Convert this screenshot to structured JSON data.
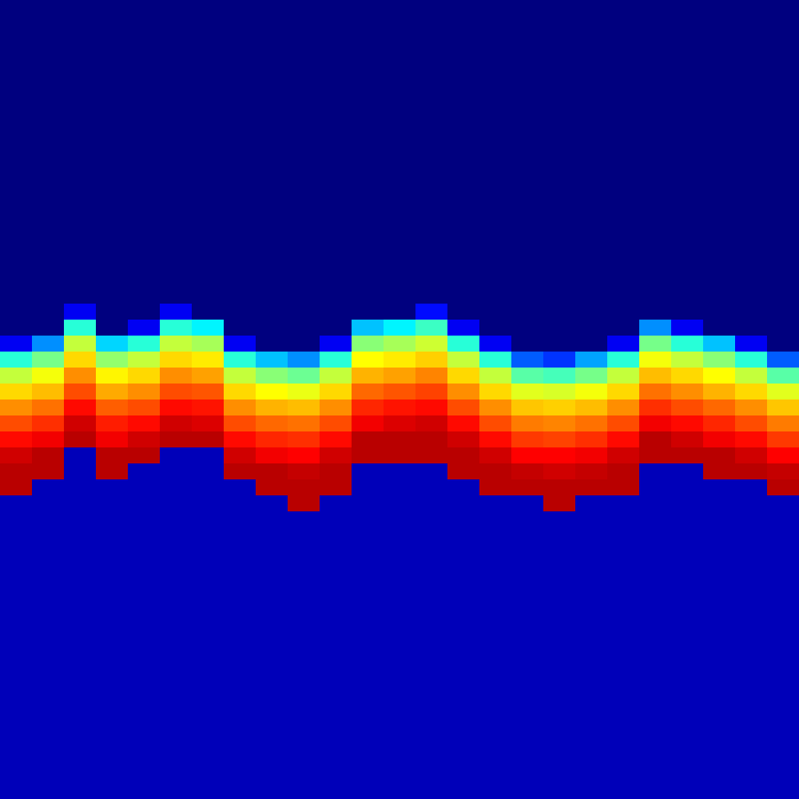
{
  "chart_data": {
    "type": "heatmap",
    "tick_labels": false,
    "zlim": [
      0,
      1
    ],
    "x_edges": [
      0,
      40,
      80,
      120,
      160,
      200,
      240,
      280,
      320,
      360,
      400,
      440,
      480,
      520,
      560,
      600,
      640,
      680,
      720,
      760,
      800,
      840,
      880,
      920,
      960,
      1000
    ],
    "y_edges": [
      0,
      380,
      400,
      420,
      440,
      460,
      480,
      500,
      520,
      540,
      560,
      580,
      600,
      620,
      640,
      660,
      1000
    ],
    "columns": [
      [
        0,
        0,
        0,
        0.1,
        0.4,
        0.56,
        0.66,
        0.74,
        0.81,
        0.88,
        0.93,
        0.95,
        0.95,
        0.05,
        0.05,
        0.05
      ],
      [
        0,
        0,
        0,
        0.25,
        0.48,
        0.61,
        0.69,
        0.77,
        0.84,
        0.9,
        0.95,
        0.95,
        0.05,
        0.05,
        0.05,
        0.05
      ],
      [
        0,
        0.1,
        0.4,
        0.56,
        0.66,
        0.74,
        0.81,
        0.88,
        0.93,
        0.95,
        0.05,
        0.05,
        0.05,
        0.05,
        0.05,
        0.05
      ],
      [
        0,
        0,
        0,
        0.32,
        0.51,
        0.63,
        0.71,
        0.79,
        0.86,
        0.9,
        0.95,
        0.95,
        0.05,
        0.05,
        0.05,
        0.05
      ],
      [
        0,
        0,
        0.1,
        0.4,
        0.56,
        0.66,
        0.74,
        0.81,
        0.88,
        0.93,
        0.95,
        0.05,
        0.05,
        0.05,
        0.05,
        0.05
      ],
      [
        0,
        0.1,
        0.4,
        0.56,
        0.66,
        0.74,
        0.81,
        0.88,
        0.93,
        0.95,
        0.05,
        0.05,
        0.05,
        0.05,
        0.05,
        0.05
      ],
      [
        0,
        0,
        0.35,
        0.53,
        0.64,
        0.72,
        0.8,
        0.87,
        0.92,
        0.95,
        0.05,
        0.05,
        0.05,
        0.05,
        0.05,
        0.05
      ],
      [
        0,
        0,
        0,
        0.1,
        0.4,
        0.56,
        0.66,
        0.74,
        0.81,
        0.88,
        0.93,
        0.95,
        0.05,
        0.05,
        0.05,
        0.05
      ],
      [
        0,
        0,
        0,
        0,
        0.3,
        0.5,
        0.62,
        0.7,
        0.78,
        0.85,
        0.9,
        0.95,
        0.95,
        0.05,
        0.05,
        0.05
      ],
      [
        0,
        0,
        0,
        0,
        0.25,
        0.47,
        0.6,
        0.69,
        0.77,
        0.84,
        0.89,
        0.94,
        0.95,
        0.95,
        0.05,
        0.05
      ],
      [
        0,
        0,
        0,
        0.1,
        0.4,
        0.56,
        0.66,
        0.74,
        0.81,
        0.88,
        0.93,
        0.95,
        0.95,
        0.05,
        0.05,
        0.05
      ],
      [
        0,
        0,
        0.3,
        0.5,
        0.62,
        0.7,
        0.78,
        0.85,
        0.9,
        0.95,
        0.95,
        0.05,
        0.05,
        0.05,
        0.05,
        0.05
      ],
      [
        0,
        0,
        0.35,
        0.53,
        0.64,
        0.72,
        0.8,
        0.87,
        0.92,
        0.95,
        0.95,
        0.05,
        0.05,
        0.05,
        0.05,
        0.05
      ],
      [
        0,
        0.12,
        0.42,
        0.57,
        0.67,
        0.75,
        0.82,
        0.88,
        0.93,
        0.95,
        0.95,
        0.05,
        0.05,
        0.05,
        0.05,
        0.05
      ],
      [
        0,
        0,
        0.1,
        0.4,
        0.56,
        0.66,
        0.74,
        0.81,
        0.88,
        0.93,
        0.95,
        0.95,
        0.05,
        0.05,
        0.05,
        0.05
      ],
      [
        0,
        0,
        0,
        0.1,
        0.4,
        0.56,
        0.66,
        0.74,
        0.81,
        0.88,
        0.93,
        0.95,
        0.95,
        0.05,
        0.05,
        0.05
      ],
      [
        0,
        0,
        0,
        0,
        0.2,
        0.45,
        0.59,
        0.68,
        0.76,
        0.83,
        0.89,
        0.94,
        0.95,
        0.05,
        0.05,
        0.05
      ],
      [
        0,
        0,
        0,
        0,
        0.16,
        0.43,
        0.58,
        0.67,
        0.75,
        0.82,
        0.89,
        0.93,
        0.95,
        0.95,
        0.05,
        0.05
      ],
      [
        0,
        0,
        0,
        0,
        0.27,
        0.48,
        0.61,
        0.69,
        0.77,
        0.84,
        0.9,
        0.94,
        0.95,
        0.05,
        0.05,
        0.05
      ],
      [
        0,
        0,
        0,
        0.1,
        0.4,
        0.56,
        0.66,
        0.74,
        0.81,
        0.88,
        0.93,
        0.95,
        0.95,
        0.05,
        0.05,
        0.05
      ],
      [
        0,
        0,
        0.25,
        0.48,
        0.61,
        0.69,
        0.77,
        0.84,
        0.9,
        0.95,
        0.95,
        0.05,
        0.05,
        0.05,
        0.05,
        0.05
      ],
      [
        0,
        0,
        0.1,
        0.4,
        0.56,
        0.66,
        0.74,
        0.81,
        0.88,
        0.93,
        0.95,
        0.05,
        0.05,
        0.05,
        0.05,
        0.05
      ],
      [
        0,
        0,
        0,
        0.3,
        0.5,
        0.62,
        0.7,
        0.78,
        0.85,
        0.9,
        0.95,
        0.95,
        0.05,
        0.05,
        0.05,
        0.05
      ],
      [
        0,
        0,
        0,
        0.1,
        0.4,
        0.56,
        0.66,
        0.74,
        0.81,
        0.88,
        0.93,
        0.95,
        0.05,
        0.05,
        0.05,
        0.05
      ],
      [
        0,
        0,
        0,
        0,
        0.2,
        0.45,
        0.59,
        0.68,
        0.76,
        0.83,
        0.89,
        0.94,
        0.95,
        0.05,
        0.05,
        0.05
      ]
    ]
  }
}
